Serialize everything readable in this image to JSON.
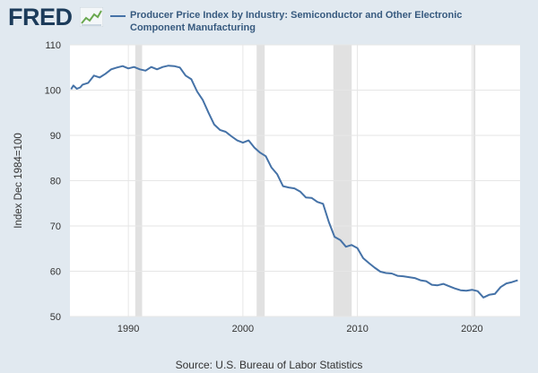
{
  "header": {
    "logo_text": "FRED",
    "logo_icon": "line-graph-icon",
    "series_label": "Producer Price Index by Industry: Semiconductor and Other Electronic Component Manufacturing"
  },
  "source": {
    "prefix": "Source:",
    "text": "U.S. Bureau of Labor Statistics"
  },
  "colors": {
    "background": "#e1e9f0",
    "plot_background": "#ffffff",
    "line": "#4572a7",
    "recession": "#e1e1e1",
    "logo": "#1c3b5a"
  },
  "chart_data": {
    "type": "line",
    "title": "",
    "xlabel": "",
    "ylabel": "Index Dec 1984=100",
    "xlim": [
      1984.9,
      2024.2
    ],
    "ylim": [
      50,
      110
    ],
    "xticks": [
      1990,
      2000,
      2010,
      2020
    ],
    "yticks": [
      50,
      60,
      70,
      80,
      90,
      100,
      110
    ],
    "grid": true,
    "legend": "top",
    "recessions": [
      [
        1990.6,
        1991.2
      ],
      [
        2001.2,
        2001.9
      ],
      [
        2007.9,
        2009.5
      ],
      [
        2020.1,
        2020.3
      ]
    ],
    "series": [
      {
        "name": "Producer Price Index by Industry: Semiconductor and Other Electronic Component Manufacturing",
        "x": [
          1985.0,
          1985.2,
          1985.5,
          1985.8,
          1986.0,
          1986.5,
          1987.0,
          1987.5,
          1988.0,
          1988.5,
          1989.0,
          1989.5,
          1990.0,
          1990.5,
          1991.0,
          1991.5,
          1992.0,
          1992.5,
          1993.0,
          1993.5,
          1994.0,
          1994.5,
          1995.0,
          1995.5,
          1996.0,
          1996.5,
          1997.0,
          1997.5,
          1998.0,
          1998.5,
          1999.0,
          1999.5,
          2000.0,
          2000.5,
          2001.0,
          2001.5,
          2002.0,
          2002.5,
          2003.0,
          2003.5,
          2004.0,
          2004.5,
          2005.0,
          2005.5,
          2006.0,
          2006.5,
          2007.0,
          2007.5,
          2008.0,
          2008.5,
          2009.0,
          2009.5,
          2010.0,
          2010.5,
          2011.0,
          2011.5,
          2012.0,
          2012.5,
          2013.0,
          2013.5,
          2014.0,
          2014.5,
          2015.0,
          2015.5,
          2016.0,
          2016.5,
          2017.0,
          2017.5,
          2018.0,
          2018.5,
          2019.0,
          2019.5,
          2020.0,
          2020.5,
          2021.0,
          2021.5,
          2022.0,
          2022.5,
          2023.0,
          2023.5,
          2024.0
        ],
        "values": [
          100.2,
          101.0,
          100.3,
          100.6,
          101.2,
          101.6,
          103.2,
          102.8,
          103.6,
          104.6,
          105.0,
          105.3,
          104.8,
          105.1,
          104.6,
          104.3,
          105.1,
          104.6,
          105.1,
          105.4,
          105.3,
          105.0,
          103.2,
          102.4,
          99.7,
          97.8,
          95.0,
          92.4,
          91.2,
          90.8,
          89.8,
          88.9,
          88.4,
          88.9,
          87.3,
          86.2,
          85.4,
          82.9,
          81.4,
          78.8,
          78.5,
          78.3,
          77.6,
          76.3,
          76.2,
          75.3,
          74.9,
          70.9,
          67.6,
          66.9,
          65.4,
          65.8,
          65.1,
          62.9,
          61.8,
          60.8,
          59.9,
          59.6,
          59.5,
          59.0,
          58.9,
          58.7,
          58.5,
          58.0,
          57.8,
          57.0,
          56.9,
          57.2,
          56.7,
          56.2,
          55.8,
          55.7,
          55.9,
          55.6,
          54.2,
          54.8,
          55.0,
          56.5,
          57.3,
          57.6,
          58.0
        ]
      }
    ]
  }
}
